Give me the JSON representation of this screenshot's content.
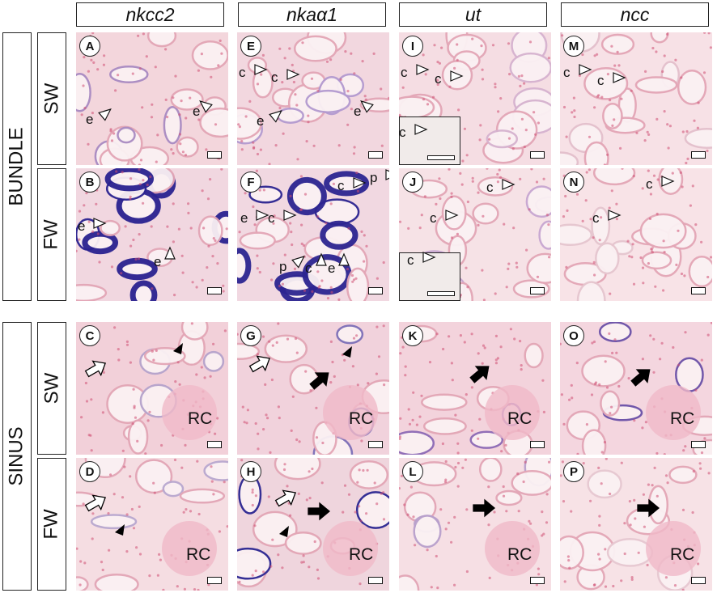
{
  "columns": [
    "nkcc2",
    "nkaα1",
    "ut",
    "ncc"
  ],
  "sections": [
    "BUNDLE",
    "SINUS"
  ],
  "conditions": [
    "SW",
    "FW",
    "SW",
    "FW"
  ],
  "panels": [
    {
      "label": "A",
      "color": "#f3d6dc",
      "stain": "#a98bc2",
      "texts": [
        "e",
        "e"
      ]
    },
    {
      "label": "E",
      "color": "#f2d7df",
      "stain": "#b39ad0",
      "texts": [
        "c",
        "c",
        "e",
        "e"
      ]
    },
    {
      "label": "I",
      "color": "#f5dde3",
      "stain": "#d6b2cf",
      "texts": [
        "c",
        "c",
        "c"
      ]
    },
    {
      "label": "M",
      "color": "#f7e1e6",
      "stain": "#e4c0cc",
      "texts": [
        "c",
        "c"
      ]
    },
    {
      "label": "B",
      "color": "#f1d7e0",
      "stain": "#2a2290",
      "texts": [
        "e",
        "e"
      ]
    },
    {
      "label": "F",
      "color": "#f1d8e1",
      "stain": "#2d2591",
      "texts": [
        "c",
        "p",
        "e",
        "c",
        "p",
        "c",
        "e"
      ]
    },
    {
      "label": "J",
      "color": "#f6e2e6",
      "stain": "#c7a7d1",
      "texts": [
        "c",
        "c",
        "c"
      ]
    },
    {
      "label": "N",
      "color": "#f8e3e7",
      "stain": "#e6c6cf",
      "texts": [
        "c",
        "c"
      ]
    },
    {
      "label": "C",
      "color": "#f2d0d9",
      "stain": "#b5a3cc",
      "texts": [
        "RC"
      ]
    },
    {
      "label": "G",
      "color": "#f1d2dc",
      "stain": "#7d6fb8",
      "texts": [
        "RC"
      ]
    },
    {
      "label": "K",
      "color": "#f3d3dc",
      "stain": "#8c6ab6",
      "texts": [
        "RC"
      ]
    },
    {
      "label": "O",
      "color": "#f4d6df",
      "stain": "#6a51a8",
      "texts": [
        "RC"
      ]
    },
    {
      "label": "D",
      "color": "#f5dde2",
      "stain": "#b8a8d0",
      "texts": [
        "RC"
      ]
    },
    {
      "label": "H",
      "color": "#efd5dd",
      "stain": "#2c2792",
      "texts": [
        "RC"
      ]
    },
    {
      "label": "L",
      "color": "#f6dfe4",
      "stain": "#b8a0cc",
      "texts": [
        "RC"
      ]
    },
    {
      "label": "P",
      "color": "#f7e2e6",
      "stain": "#e7c8d1",
      "texts": [
        "RC"
      ]
    }
  ]
}
